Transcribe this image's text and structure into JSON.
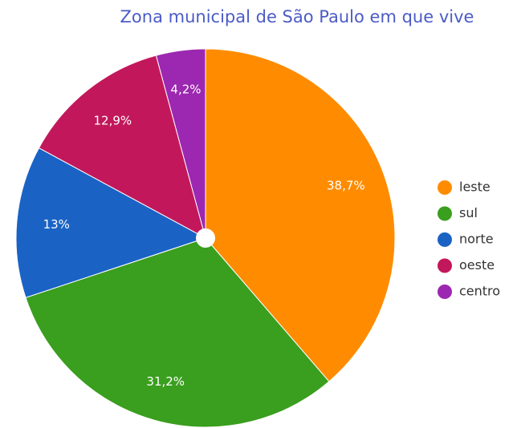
{
  "chart_data": {
    "type": "pie",
    "title": "Zona municipal de São Paulo em que vive",
    "categories": [
      "leste",
      "sul",
      "norte",
      "oeste",
      "centro"
    ],
    "values": [
      38.7,
      31.2,
      13,
      12.9,
      4.2
    ],
    "value_labels": [
      "38,7%",
      "31,2%",
      "13%",
      "12,9%",
      "4,2%"
    ],
    "colors": [
      "#ff8c00",
      "#3a9e1e",
      "#1a63c5",
      "#c2185b",
      "#9c27b0"
    ],
    "legend": "right"
  }
}
